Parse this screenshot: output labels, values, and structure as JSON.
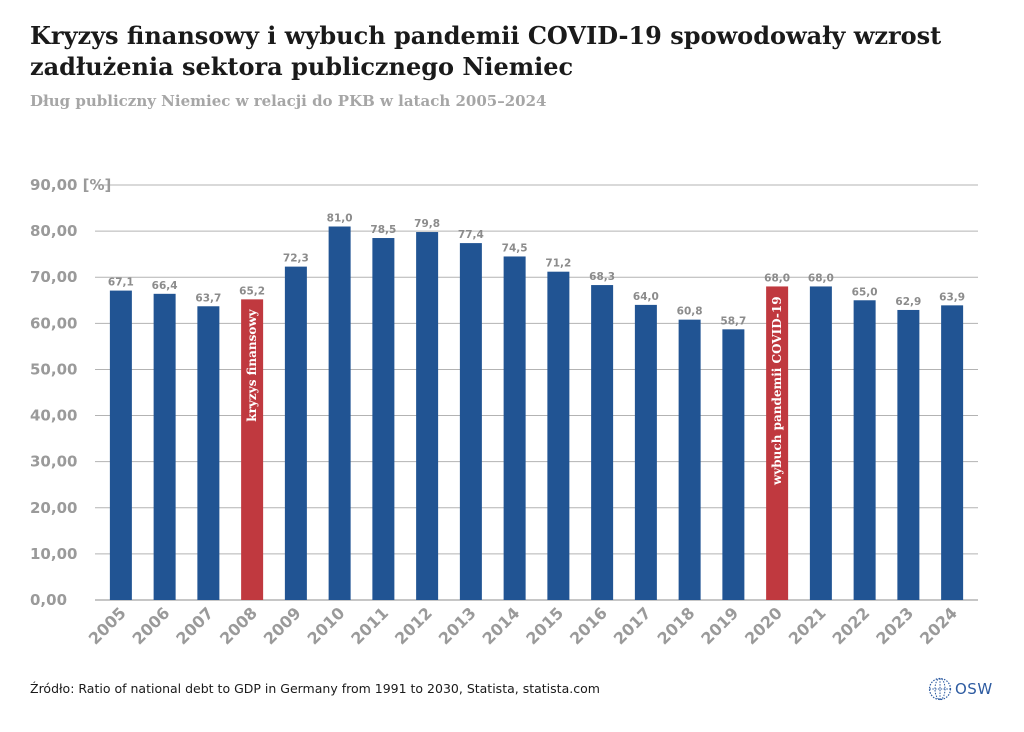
{
  "header": {
    "title": "Kryzys finansowy i wybuch pandemii COVID-19 spowodowały wzrost zadłużenia sektora publicznego Niemiec",
    "subtitle": "Dług publiczny Niemiec w relacji do PKB w latach 2005–2024"
  },
  "footer": {
    "source": "Źródło: Ratio of national debt to GDP in Germany from 1991 to 2030, Statista, statista.com",
    "logo_text": "OSW"
  },
  "colors": {
    "bar": "#215493",
    "highlight": "#c0393f",
    "grid": "#b3b3b3",
    "axis": "#9a9a9a"
  },
  "chart_data": {
    "type": "bar",
    "title": "Dług publiczny Niemiec w relacji do PKB w latach 2005–2024",
    "xlabel": "",
    "ylabel": "[%]",
    "ylim": [
      0,
      90
    ],
    "yticks": [
      "0,00",
      "10,00",
      "20,00",
      "30,00",
      "40,00",
      "50,00",
      "60,00",
      "70,00",
      "80,00",
      "90,00 [%]"
    ],
    "categories": [
      "2005",
      "2006",
      "2007",
      "2008",
      "2009",
      "2010",
      "2011",
      "2012",
      "2013",
      "2014",
      "2015",
      "2016",
      "2017",
      "2018",
      "2019",
      "2020",
      "2021",
      "2022",
      "2023",
      "2024"
    ],
    "values": [
      67.1,
      66.4,
      63.7,
      65.2,
      72.3,
      81.0,
      78.5,
      79.8,
      77.4,
      74.5,
      71.2,
      68.3,
      64.0,
      60.8,
      58.7,
      68.0,
      68.0,
      65.0,
      62.9,
      63.9
    ],
    "value_labels": [
      "67,1",
      "66,4",
      "63,7",
      "65,2",
      "72,3",
      "81,0",
      "78,5",
      "79,8",
      "77,4",
      "74,5",
      "71,2",
      "68,3",
      "64,0",
      "60,8",
      "58,7",
      "68,0",
      "68,0",
      "65,0",
      "62,9",
      "63,9"
    ],
    "highlighted": [
      {
        "category": "2008",
        "annotation": "kryzys finansowy"
      },
      {
        "category": "2020",
        "annotation": "wybuch pandemii COVID-19"
      }
    ]
  }
}
